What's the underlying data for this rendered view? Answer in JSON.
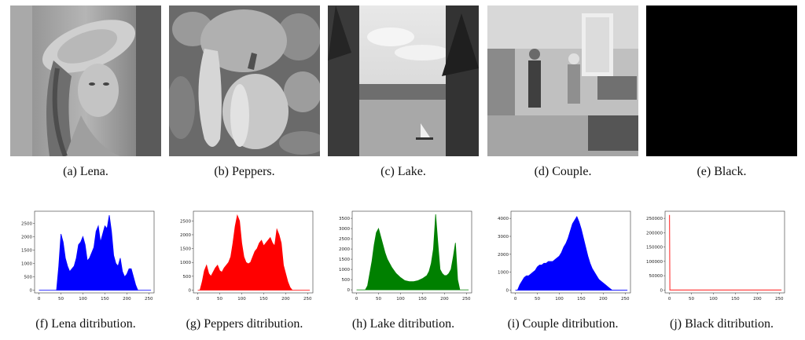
{
  "images": [
    {
      "id": "a",
      "caption": "(a)  Lena."
    },
    {
      "id": "b",
      "caption": "(b)  Peppers."
    },
    {
      "id": "c",
      "caption": "(c)  Lake."
    },
    {
      "id": "d",
      "caption": "(d)  Couple."
    },
    {
      "id": "e",
      "caption": "(e)  Black."
    }
  ],
  "histogram_captions": [
    "(f)  Lena ditribution.",
    "(g)  Peppers ditribution.",
    "(h)  Lake ditribution.",
    "(i)  Couple ditribution.",
    "(j)  Black ditribution."
  ],
  "chart_data": [
    {
      "type": "area",
      "color": "#0000ff",
      "x": [
        0,
        10,
        20,
        30,
        40,
        45,
        50,
        55,
        60,
        65,
        70,
        75,
        80,
        85,
        90,
        95,
        100,
        105,
        110,
        115,
        120,
        125,
        130,
        135,
        140,
        145,
        150,
        155,
        160,
        165,
        170,
        175,
        180,
        185,
        190,
        195,
        200,
        205,
        210,
        215,
        220,
        225,
        230,
        235,
        240,
        245,
        250,
        255
      ],
      "values": [
        0,
        0,
        0,
        0,
        0,
        900,
        2100,
        1800,
        1200,
        900,
        700,
        800,
        900,
        1200,
        1700,
        1800,
        2000,
        1700,
        1100,
        1200,
        1400,
        1600,
        2200,
        2400,
        1800,
        2100,
        2400,
        2300,
        2800,
        2200,
        1300,
        1000,
        900,
        1200,
        700,
        500,
        600,
        800,
        800,
        500,
        200,
        0,
        0,
        0,
        0,
        0,
        0,
        0
      ],
      "xticks": [
        0,
        50,
        100,
        150,
        200,
        250
      ],
      "yticks": [
        0,
        500,
        1000,
        1500,
        2000,
        2500
      ],
      "xlim": [
        -10,
        262
      ],
      "ylim": [
        -100,
        2950
      ]
    },
    {
      "type": "area",
      "color": "#ff0000",
      "x": [
        0,
        5,
        10,
        15,
        20,
        25,
        30,
        35,
        40,
        45,
        50,
        55,
        60,
        65,
        70,
        75,
        80,
        85,
        90,
        95,
        100,
        105,
        110,
        115,
        120,
        125,
        130,
        135,
        140,
        145,
        150,
        155,
        160,
        165,
        170,
        175,
        180,
        185,
        190,
        195,
        200,
        205,
        210,
        215,
        220,
        225,
        230,
        235,
        240,
        245,
        250,
        255
      ],
      "values": [
        0,
        0,
        300,
        700,
        900,
        600,
        500,
        650,
        800,
        900,
        700,
        650,
        800,
        900,
        1000,
        1200,
        1700,
        2300,
        2700,
        2500,
        1700,
        1200,
        1000,
        950,
        1000,
        1200,
        1400,
        1500,
        1700,
        1800,
        1600,
        1700,
        1800,
        1900,
        1700,
        1600,
        2200,
        2000,
        1700,
        900,
        600,
        300,
        100,
        0,
        0,
        0,
        0,
        0,
        0,
        0,
        0,
        0
      ],
      "xticks": [
        0,
        50,
        100,
        150,
        200,
        250
      ],
      "yticks": [
        0,
        500,
        1000,
        1500,
        2000,
        2500
      ],
      "xlim": [
        -10,
        262
      ],
      "ylim": [
        -100,
        2850
      ]
    },
    {
      "type": "area",
      "color": "#008000",
      "x": [
        0,
        10,
        20,
        25,
        30,
        35,
        40,
        45,
        50,
        55,
        60,
        65,
        70,
        75,
        80,
        90,
        100,
        110,
        120,
        130,
        140,
        150,
        160,
        165,
        170,
        175,
        180,
        185,
        190,
        195,
        200,
        205,
        210,
        215,
        220,
        225,
        230,
        235,
        240,
        245,
        250,
        255
      ],
      "values": [
        0,
        0,
        0,
        200,
        800,
        1400,
        2200,
        2800,
        3000,
        2600,
        2200,
        1800,
        1500,
        1300,
        1100,
        800,
        600,
        450,
        400,
        400,
        450,
        550,
        700,
        900,
        1300,
        2000,
        3700,
        2300,
        1000,
        800,
        700,
        700,
        800,
        1000,
        1600,
        2300,
        500,
        0,
        0,
        0,
        0,
        0
      ],
      "xticks": [
        0,
        50,
        100,
        150,
        200,
        250
      ],
      "yticks": [
        0,
        500,
        1000,
        1500,
        2000,
        2500,
        3000,
        3500
      ],
      "xlim": [
        -10,
        262
      ],
      "ylim": [
        -150,
        3850
      ]
    },
    {
      "type": "area",
      "color": "#0000ff",
      "x": [
        0,
        5,
        10,
        15,
        20,
        25,
        30,
        35,
        40,
        45,
        50,
        55,
        60,
        65,
        70,
        75,
        80,
        85,
        90,
        95,
        100,
        105,
        110,
        115,
        120,
        125,
        130,
        135,
        140,
        145,
        150,
        155,
        160,
        165,
        170,
        175,
        180,
        185,
        190,
        195,
        200,
        205,
        210,
        215,
        220,
        225,
        230,
        235,
        240,
        245,
        250,
        255
      ],
      "values": [
        0,
        0,
        300,
        500,
        700,
        800,
        800,
        900,
        1000,
        1100,
        1300,
        1400,
        1400,
        1500,
        1500,
        1600,
        1600,
        1600,
        1700,
        1800,
        1900,
        2100,
        2400,
        2600,
        2900,
        3300,
        3700,
        3900,
        4100,
        3800,
        3400,
        2900,
        2400,
        1900,
        1500,
        1200,
        1000,
        800,
        600,
        500,
        400,
        300,
        200,
        100,
        0,
        0,
        0,
        0,
        0,
        0,
        0,
        0
      ],
      "xticks": [
        0,
        50,
        100,
        150,
        200,
        250
      ],
      "yticks": [
        0,
        1000,
        2000,
        3000,
        4000
      ],
      "xlim": [
        -10,
        262
      ],
      "ylim": [
        -150,
        4400
      ]
    },
    {
      "type": "line",
      "color": "#ff4444",
      "x": [
        0,
        1,
        2,
        255
      ],
      "values": [
        262144,
        0,
        0,
        0
      ],
      "xticks": [
        0,
        50,
        100,
        150,
        200,
        250
      ],
      "yticks": [
        0,
        50000,
        100000,
        150000,
        200000,
        250000
      ],
      "xlim": [
        -10,
        262
      ],
      "ylim": [
        -10000,
        275000
      ]
    }
  ]
}
